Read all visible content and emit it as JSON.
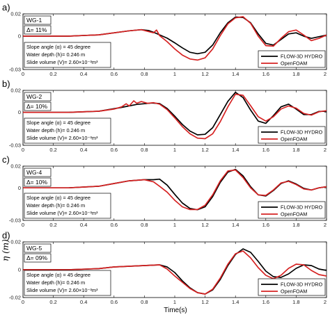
{
  "chart_data": [
    {
      "type": "line",
      "panel_label": "a)",
      "gauge": "WG-1",
      "delta": "Δ= 11%",
      "params": [
        "Slope angle (α) = 45 degree",
        "Water depth (h)= 0.246 m",
        "Slide volume (V)= 2.60×10⁻³m³"
      ],
      "ylim": [
        -0.03,
        0.02
      ],
      "yticks": [
        0.02,
        0,
        -0.03
      ],
      "ytick_labels": [
        "0.02",
        "0",
        "-0.03"
      ],
      "series": [
        {
          "name": "FLOW-3D HYDRO",
          "color": "#000000",
          "x": [
            0,
            0.3,
            0.5,
            0.7,
            0.78,
            0.83,
            0.86,
            0.9,
            0.95,
            1.0,
            1.05,
            1.1,
            1.15,
            1.2,
            1.25,
            1.3,
            1.35,
            1.4,
            1.45,
            1.5,
            1.55,
            1.6,
            1.65,
            1.7,
            1.75,
            1.8,
            1.85,
            1.9,
            1.95,
            2.0
          ],
          "y": [
            0,
            0,
            0.0012,
            0.0048,
            0.0058,
            0.005,
            0.0035,
            0.0012,
            -0.0018,
            -0.006,
            -0.0105,
            -0.0145,
            -0.0158,
            -0.0145,
            -0.008,
            0.003,
            0.012,
            0.0172,
            0.0168,
            0.012,
            0.002,
            -0.0065,
            -0.008,
            -0.003,
            0.002,
            0.003,
            0.0,
            -0.002,
            -0.0005,
            0.001
          ]
        },
        {
          "name": "OpenFOAM",
          "color": "#d62222",
          "x": [
            0,
            0.3,
            0.5,
            0.7,
            0.78,
            0.83,
            0.86,
            0.88,
            0.9,
            0.95,
            1.0,
            1.05,
            1.1,
            1.15,
            1.2,
            1.25,
            1.3,
            1.35,
            1.4,
            1.45,
            1.5,
            1.55,
            1.6,
            1.65,
            1.7,
            1.75,
            1.8,
            1.85,
            1.9,
            1.95,
            2.0
          ],
          "y": [
            0,
            0,
            0.0012,
            0.0048,
            0.0058,
            0.004,
            0.003,
            0.0055,
            0.0005,
            -0.005,
            -0.0115,
            -0.017,
            -0.0205,
            -0.0215,
            -0.0195,
            -0.0115,
            0.0005,
            0.011,
            0.0165,
            0.0175,
            0.0115,
            0.0,
            -0.0085,
            -0.009,
            -0.002,
            0.004,
            0.0055,
            0.001,
            -0.004,
            -0.002,
            0.001
          ]
        }
      ]
    },
    {
      "type": "line",
      "panel_label": "b)",
      "gauge": "WG-2",
      "delta": "Δ= 10%",
      "params": [
        "Slope angle (α) = 45 degree",
        "Water depth (h)= 0.246 m",
        "Slide volume (V)= 2.60×10⁻³m³"
      ],
      "ylim": [
        -0.03,
        0.02
      ],
      "yticks": [
        0.02,
        0,
        -0.03
      ],
      "ytick_labels": [
        "0.02",
        "0",
        "-0.03"
      ],
      "series": [
        {
          "name": "FLOW-3D HYDRO",
          "color": "#000000",
          "x": [
            0,
            0.3,
            0.5,
            0.65,
            0.75,
            0.85,
            0.9,
            0.95,
            1.0,
            1.05,
            1.1,
            1.15,
            1.2,
            1.25,
            1.3,
            1.35,
            1.4,
            1.45,
            1.5,
            1.55,
            1.6,
            1.65,
            1.7,
            1.75,
            1.8,
            1.85,
            1.9,
            1.95,
            2.0
          ],
          "y": [
            0,
            0,
            0.001,
            0.0045,
            0.0072,
            0.0085,
            0.008,
            0.0035,
            -0.0035,
            -0.011,
            -0.017,
            -0.0205,
            -0.02,
            -0.014,
            -0.002,
            0.01,
            0.0182,
            0.0135,
            0.002,
            -0.008,
            -0.01,
            -0.003,
            0.005,
            0.0075,
            0.003,
            -0.002,
            -0.002,
            0.0008,
            0.001
          ]
        },
        {
          "name": "OpenFOAM",
          "color": "#d62222",
          "x": [
            0,
            0.3,
            0.5,
            0.6,
            0.65,
            0.68,
            0.7,
            0.73,
            0.75,
            0.78,
            0.82,
            0.86,
            0.9,
            0.95,
            1.0,
            1.05,
            1.1,
            1.15,
            1.2,
            1.25,
            1.3,
            1.35,
            1.4,
            1.45,
            1.5,
            1.55,
            1.6,
            1.65,
            1.7,
            1.75,
            1.8,
            1.85,
            1.9,
            1.95,
            2.0
          ],
          "y": [
            0,
            0,
            0.001,
            0.003,
            0.005,
            0.0078,
            0.0058,
            0.0105,
            0.0082,
            0.0098,
            0.0082,
            0.0088,
            0.0075,
            0.0025,
            -0.005,
            -0.013,
            -0.0195,
            -0.0235,
            -0.024,
            -0.0195,
            -0.0085,
            0.005,
            0.0165,
            0.0155,
            0.006,
            -0.004,
            -0.008,
            -0.004,
            0.003,
            0.0058,
            0.0038,
            -0.001,
            -0.0025,
            0.0005,
            0.0015
          ]
        }
      ]
    },
    {
      "type": "line",
      "panel_label": "c)",
      "gauge": "WG-4",
      "delta": "Δ= 10%",
      "params": [
        "Slope angle (α) = 45 degree",
        "Water depth (h)= 0.246 m",
        "Slide volume (V)= 2.60×10⁻³m³"
      ],
      "ylim": [
        -0.03,
        0.02
      ],
      "yticks": [
        0.02,
        0,
        -0.03
      ],
      "ytick_labels": [
        "0.02",
        "0",
        "-0.03"
      ],
      "series": [
        {
          "name": "FLOW-3D HYDRO",
          "color": "#000000",
          "x": [
            0,
            0.3,
            0.5,
            0.6,
            0.7,
            0.8,
            0.86,
            0.9,
            0.95,
            1.0,
            1.05,
            1.1,
            1.15,
            1.2,
            1.25,
            1.3,
            1.35,
            1.4,
            1.45,
            1.5,
            1.55,
            1.6,
            1.65,
            1.7,
            1.75,
            1.8,
            1.85,
            1.9,
            1.95,
            2.0
          ],
          "y": [
            0,
            0,
            0.0015,
            0.004,
            0.0065,
            0.0075,
            0.0075,
            0.008,
            0.0025,
            -0.006,
            -0.014,
            -0.019,
            -0.0202,
            -0.0175,
            -0.008,
            0.005,
            0.0145,
            0.017,
            0.011,
            0.001,
            -0.0065,
            -0.0075,
            -0.0025,
            0.004,
            0.0065,
            0.0035,
            -0.0005,
            -0.002,
            0.0,
            0.001
          ]
        },
        {
          "name": "OpenFOAM",
          "color": "#d62222",
          "x": [
            0,
            0.3,
            0.5,
            0.6,
            0.7,
            0.8,
            0.86,
            0.9,
            0.95,
            1.0,
            1.05,
            1.1,
            1.15,
            1.2,
            1.25,
            1.3,
            1.35,
            1.4,
            1.45,
            1.5,
            1.55,
            1.6,
            1.65,
            1.7,
            1.75,
            1.8,
            1.85,
            1.9,
            1.95,
            2.0
          ],
          "y": [
            0,
            0,
            0.0015,
            0.004,
            0.0065,
            0.0075,
            0.0055,
            0.0015,
            -0.004,
            -0.0115,
            -0.0175,
            -0.02,
            -0.02,
            -0.016,
            -0.0065,
            0.0065,
            0.0155,
            0.0165,
            0.0095,
            0.0,
            -0.0065,
            -0.007,
            -0.002,
            0.0045,
            0.006,
            0.003,
            -0.001,
            -0.002,
            0.0,
            0.001
          ]
        }
      ]
    },
    {
      "type": "line",
      "panel_label": "d)",
      "gauge": "WG-5",
      "delta": "Δ= 09%",
      "params": [
        "Slope angle (α) = 45 degree",
        "Water depth (h)= 0.246 m",
        "Slide volume (V)= 2.60×10⁻³m³"
      ],
      "ylim": [
        -0.02,
        0.02
      ],
      "yticks": [
        0.02,
        0,
        -0.02
      ],
      "ytick_labels": [
        "0.02",
        "0",
        "-0.02"
      ],
      "series": [
        {
          "name": "FLOW-3D HYDRO",
          "color": "#000000",
          "x": [
            0,
            0.3,
            0.5,
            0.6,
            0.7,
            0.8,
            0.9,
            0.95,
            1.0,
            1.05,
            1.1,
            1.15,
            1.2,
            1.25,
            1.3,
            1.35,
            1.4,
            1.45,
            1.5,
            1.55,
            1.6,
            1.65,
            1.7,
            1.75,
            1.8,
            1.85,
            1.9,
            1.95,
            2.0
          ],
          "y": [
            0,
            0,
            0.0008,
            0.002,
            0.0025,
            0.003,
            0.0035,
            0.002,
            -0.002,
            -0.008,
            -0.013,
            -0.0165,
            -0.0175,
            -0.0145,
            -0.007,
            0.003,
            0.011,
            0.015,
            0.0125,
            0.006,
            -0.001,
            -0.005,
            -0.0055,
            -0.003,
            0.001,
            0.0035,
            0.003,
            0.0005,
            -0.0005
          ]
        },
        {
          "name": "OpenFOAM",
          "color": "#d62222",
          "x": [
            0,
            0.3,
            0.5,
            0.6,
            0.7,
            0.8,
            0.9,
            0.95,
            1.0,
            1.05,
            1.1,
            1.15,
            1.2,
            1.25,
            1.3,
            1.35,
            1.4,
            1.45,
            1.5,
            1.55,
            1.6,
            1.65,
            1.7,
            1.75,
            1.8,
            1.85,
            1.9,
            1.95,
            2.0
          ],
          "y": [
            0,
            0,
            0.0008,
            0.002,
            0.0025,
            0.003,
            0.0035,
            0.0005,
            -0.0045,
            -0.009,
            -0.0135,
            -0.0165,
            -0.0175,
            -0.014,
            -0.006,
            0.004,
            0.0115,
            0.0135,
            0.0085,
            0.0015,
            -0.004,
            -0.0065,
            -0.004,
            0.001,
            0.004,
            0.0035,
            -0.0005,
            -0.0035,
            -0.0045
          ]
        }
      ]
    }
  ],
  "xaxis": {
    "xlim": [
      0,
      2
    ],
    "ticks": [
      0,
      0.2,
      0.4,
      0.6,
      0.8,
      1,
      1.2,
      1.4,
      1.6,
      1.8,
      2
    ],
    "tick_labels": [
      "0",
      "0.2",
      "0.4",
      "0.6",
      "0.8",
      "1",
      "1.2",
      "1.4",
      "1.6",
      "1.8",
      "2"
    ],
    "label": "Time(s)"
  },
  "ylabel": "η (m)"
}
